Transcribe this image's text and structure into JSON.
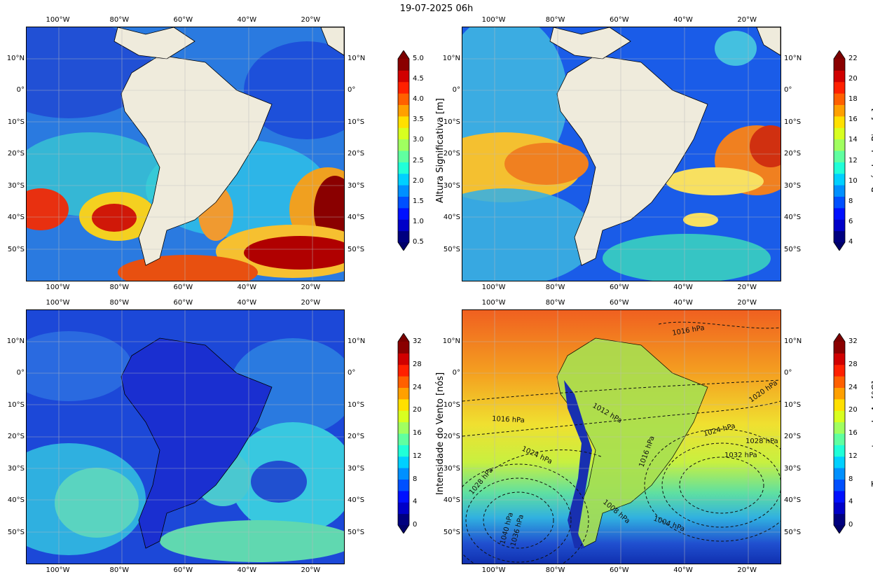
{
  "title": "19-07-2025 06h",
  "axes": {
    "lon_ticks": [
      "100°W",
      "80°W",
      "60°W",
      "40°W",
      "20°W"
    ],
    "lat_ticks_a": [
      "10°N",
      "0°",
      "10°S",
      "20°S",
      "30°S",
      "40°S",
      "50°S"
    ],
    "lat_ticks_b": [
      "10°N",
      "0°",
      "10°S",
      "20°S",
      "30°S",
      "40°S",
      "50°S"
    ]
  },
  "panels": [
    {
      "id": "wave-height",
      "cbar_label": "Altura Significativa [m]",
      "cbar_ticks": [
        "0.5",
        "1.0",
        "1.5",
        "2.0",
        "2.5",
        "3.0",
        "3.5",
        "4.0",
        "4.5",
        "5.0"
      ],
      "land_color": "#efebdc"
    },
    {
      "id": "peak-period",
      "cbar_label": "Período de Pico [s]",
      "cbar_ticks": [
        "4",
        "6",
        "8",
        "10",
        "12",
        "14",
        "16",
        "18",
        "20",
        "22"
      ],
      "land_color": "#efebdc"
    },
    {
      "id": "wind-speed",
      "cbar_label": "Intensidade do Vento [nós]",
      "cbar_ticks": [
        "0",
        "4",
        "8",
        "12",
        "16",
        "20",
        "24",
        "28",
        "32"
      ],
      "land_color": "#1a2fd0"
    },
    {
      "id": "air-temperature",
      "cbar_label": "Temperatura do Ar [°C]",
      "cbar_ticks": [
        "0",
        "4",
        "8",
        "12",
        "16",
        "20",
        "24",
        "28",
        "32"
      ],
      "land_color": "#2a7ad8"
    }
  ],
  "isobar_labels": [
    {
      "text": "1016 hPa"
    },
    {
      "text": "1020 hPa"
    },
    {
      "text": "1012 hPa"
    },
    {
      "text": "1016 hPa"
    },
    {
      "text": "1024 hPa"
    },
    {
      "text": "1028 hPa"
    },
    {
      "text": "1032 hPa"
    },
    {
      "text": "1024 hPa"
    },
    {
      "text": "1016 hPa"
    },
    {
      "text": "1028 hPa"
    },
    {
      "text": "1008 hPa"
    },
    {
      "text": "1004 hPa"
    },
    {
      "text": "1040 hPa"
    },
    {
      "text": "1036 hPa"
    }
  ]
}
